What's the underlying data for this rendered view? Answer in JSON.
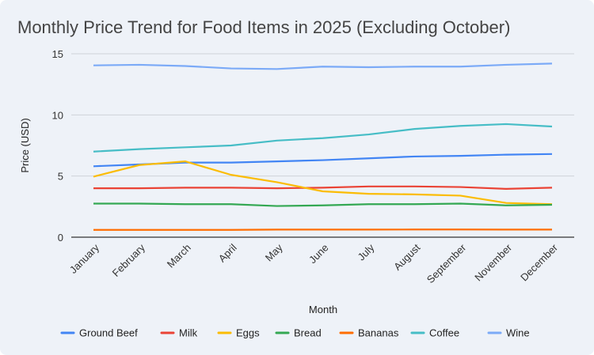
{
  "chart_data": {
    "type": "line",
    "title": "Monthly Price Trend for Food Items in 2025 (Excluding October)",
    "xlabel": "Month",
    "ylabel": "Price (USD)",
    "ylim": [
      0,
      15
    ],
    "yticks": [
      0,
      5,
      10,
      15
    ],
    "grid": true,
    "legend_position": "bottom",
    "categories": [
      "January",
      "February",
      "March",
      "April",
      "May",
      "June",
      "July",
      "August",
      "September",
      "November",
      "December"
    ],
    "series": [
      {
        "name": "Ground Beef",
        "color": "#4285f4",
        "values": [
          5.8,
          5.95,
          6.1,
          6.1,
          6.2,
          6.3,
          6.45,
          6.6,
          6.65,
          6.75,
          6.8
        ]
      },
      {
        "name": "Milk",
        "color": "#ea4335",
        "values": [
          4.0,
          4.0,
          4.05,
          4.05,
          4.0,
          4.05,
          4.15,
          4.15,
          4.1,
          3.95,
          4.05
        ]
      },
      {
        "name": "Eggs",
        "color": "#fbbc04",
        "values": [
          4.95,
          5.9,
          6.2,
          5.1,
          4.5,
          3.75,
          3.55,
          3.5,
          3.4,
          2.8,
          2.7
        ]
      },
      {
        "name": "Bread",
        "color": "#34a853",
        "values": [
          2.75,
          2.75,
          2.7,
          2.7,
          2.55,
          2.6,
          2.7,
          2.7,
          2.75,
          2.6,
          2.65
        ]
      },
      {
        "name": "Bananas",
        "color": "#ff6d01",
        "values": [
          0.6,
          0.6,
          0.6,
          0.6,
          0.62,
          0.62,
          0.62,
          0.63,
          0.63,
          0.62,
          0.62
        ]
      },
      {
        "name": "Coffee",
        "color": "#46bdc6",
        "values": [
          7.0,
          7.2,
          7.35,
          7.5,
          7.9,
          8.1,
          8.4,
          8.85,
          9.1,
          9.25,
          9.05
        ]
      },
      {
        "name": "Wine",
        "color": "#7baaf7",
        "values": [
          14.05,
          14.1,
          14.0,
          13.8,
          13.75,
          13.95,
          13.9,
          13.95,
          13.95,
          14.1,
          14.2
        ]
      }
    ]
  }
}
